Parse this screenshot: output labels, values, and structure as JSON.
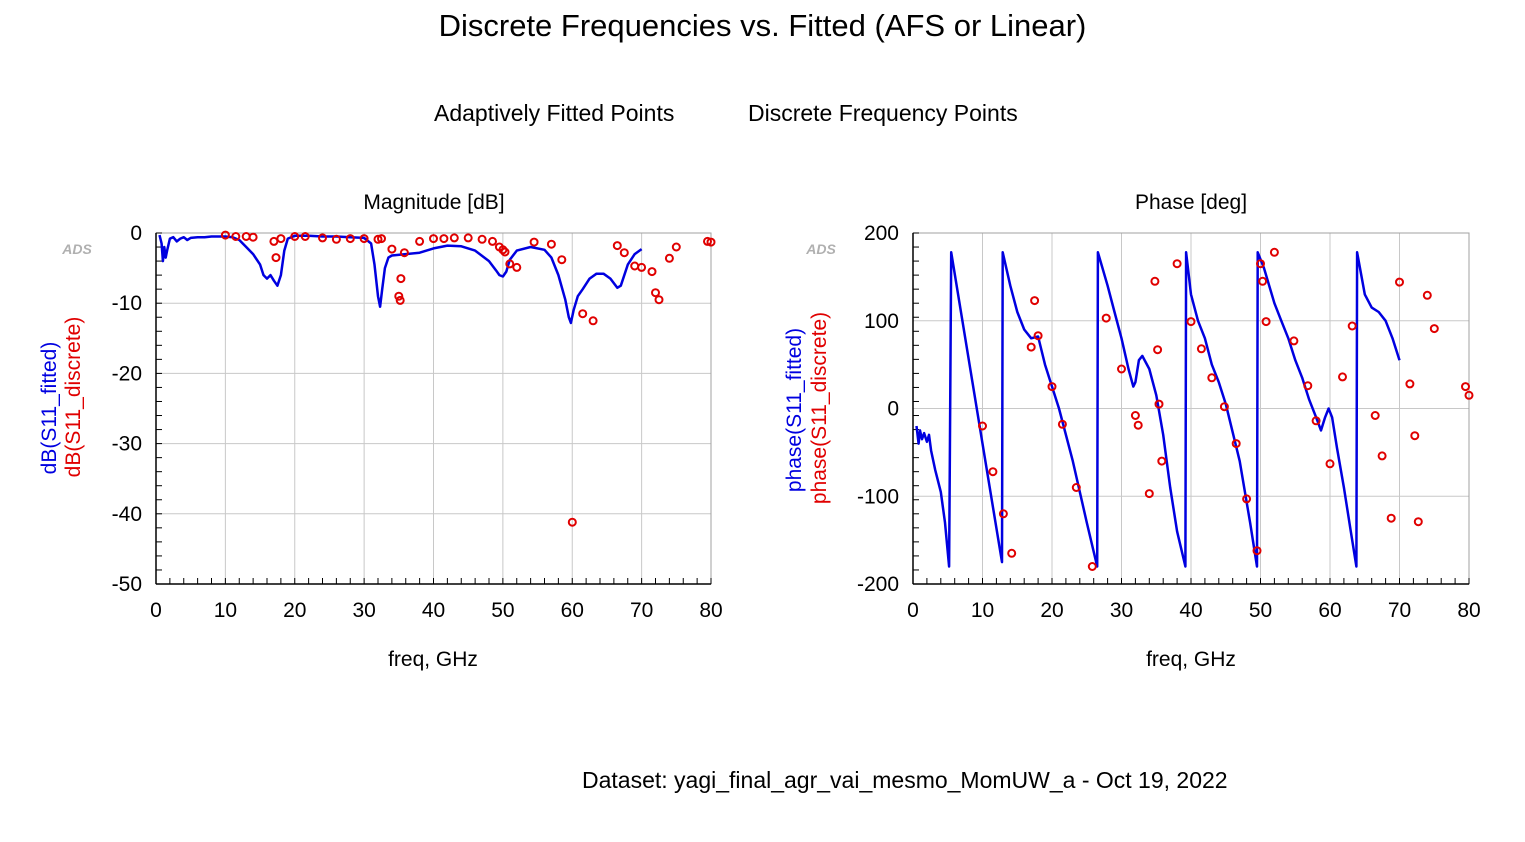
{
  "title": "Discrete Frequencies vs. Fitted (AFS or Linear)",
  "legend": {
    "fitted": "Adaptively Fitted Points",
    "discrete": "Discrete Frequency Points"
  },
  "dataset": "Dataset: yagi_final_agr_vai_mesmo_MomUW_a - Oct 19, 2022",
  "colors": {
    "fitted": "#0000e0",
    "discrete": "#e00000",
    "grid": "#c8c8c8"
  },
  "chart_data": [
    {
      "type": "line",
      "title": "Magnitude [dB]",
      "watermark": "ADS",
      "xlabel": "freq, GHz",
      "ylabel_fitted": "dB(S11_fitted)",
      "ylabel_discrete": "dB(S11_discrete)",
      "xlim": [
        0,
        80
      ],
      "ylim": [
        -50,
        0
      ],
      "xticks": [
        0,
        10,
        20,
        30,
        40,
        50,
        60,
        70,
        80
      ],
      "yticks": [
        0,
        -10,
        -20,
        -30,
        -40,
        -50
      ],
      "grid": true,
      "series": [
        {
          "name": "S11_fitted",
          "style": "line",
          "points": [
            [
              0.5,
              -0.3
            ],
            [
              0.8,
              -1.5
            ],
            [
              1.0,
              -4.0
            ],
            [
              1.2,
              -2.0
            ],
            [
              1.4,
              -3.5
            ],
            [
              1.6,
              -2.5
            ],
            [
              2.0,
              -0.8
            ],
            [
              2.5,
              -0.6
            ],
            [
              3.0,
              -1.2
            ],
            [
              3.5,
              -0.8
            ],
            [
              4.0,
              -0.6
            ],
            [
              4.5,
              -1.0
            ],
            [
              5.0,
              -0.7
            ],
            [
              6,
              -0.6
            ],
            [
              7,
              -0.6
            ],
            [
              8,
              -0.5
            ],
            [
              9,
              -0.5
            ],
            [
              10,
              -0.5
            ],
            [
              11,
              -0.6
            ],
            [
              12,
              -1.0
            ],
            [
              13,
              -2.0
            ],
            [
              14,
              -3.0
            ],
            [
              15,
              -4.5
            ],
            [
              15.5,
              -6.0
            ],
            [
              16,
              -6.5
            ],
            [
              16.5,
              -6.0
            ],
            [
              17,
              -6.8
            ],
            [
              17.5,
              -7.5
            ],
            [
              18,
              -6.0
            ],
            [
              18.5,
              -2.5
            ],
            [
              19,
              -0.8
            ],
            [
              20,
              -0.4
            ],
            [
              22,
              -0.4
            ],
            [
              24,
              -0.5
            ],
            [
              26,
              -0.5
            ],
            [
              28,
              -0.6
            ],
            [
              30,
              -0.7
            ],
            [
              31,
              -1.5
            ],
            [
              31.5,
              -4.5
            ],
            [
              32,
              -9.0
            ],
            [
              32.3,
              -10.5
            ],
            [
              32.6,
              -8.0
            ],
            [
              33,
              -5.0
            ],
            [
              33.5,
              -3.5
            ],
            [
              34,
              -3.2
            ],
            [
              36,
              -3.0
            ],
            [
              38,
              -2.8
            ],
            [
              40,
              -2.2
            ],
            [
              42,
              -1.8
            ],
            [
              44,
              -1.9
            ],
            [
              46,
              -2.5
            ],
            [
              48,
              -4.0
            ],
            [
              49,
              -5.3
            ],
            [
              49.5,
              -6.0
            ],
            [
              50,
              -6.2
            ],
            [
              50.5,
              -5.5
            ],
            [
              51,
              -3.8
            ],
            [
              52,
              -2.5
            ],
            [
              54,
              -2.0
            ],
            [
              56,
              -2.4
            ],
            [
              57,
              -3.5
            ],
            [
              58,
              -6.0
            ],
            [
              59,
              -9.5
            ],
            [
              59.5,
              -12.0
            ],
            [
              59.8,
              -12.8
            ],
            [
              60.2,
              -11.0
            ],
            [
              60.8,
              -9.0
            ],
            [
              61.5,
              -8.0
            ],
            [
              62.5,
              -6.5
            ],
            [
              63.5,
              -5.8
            ],
            [
              64.5,
              -5.8
            ],
            [
              65.5,
              -6.5
            ],
            [
              66.5,
              -7.8
            ],
            [
              67,
              -7.5
            ],
            [
              68,
              -4.5
            ],
            [
              69,
              -3.0
            ],
            [
              70,
              -2.3
            ]
          ]
        },
        {
          "name": "S11_discrete",
          "style": "markers",
          "points": [
            [
              10,
              -0.3
            ],
            [
              11.5,
              -0.5
            ],
            [
              13,
              -0.5
            ],
            [
              14,
              -0.6
            ],
            [
              17,
              -1.2
            ],
            [
              17.3,
              -3.5
            ],
            [
              18,
              -0.8
            ],
            [
              20,
              -0.5
            ],
            [
              21.5,
              -0.5
            ],
            [
              24,
              -0.7
            ],
            [
              26,
              -0.9
            ],
            [
              28,
              -0.8
            ],
            [
              30,
              -0.8
            ],
            [
              32,
              -0.9
            ],
            [
              32.5,
              -0.8
            ],
            [
              34,
              -2.3
            ],
            [
              35,
              -9.0
            ],
            [
              35.3,
              -6.5
            ],
            [
              35.2,
              -9.6
            ],
            [
              35.8,
              -2.8
            ],
            [
              38,
              -1.2
            ],
            [
              40,
              -0.8
            ],
            [
              41.5,
              -0.8
            ],
            [
              43,
              -0.7
            ],
            [
              45,
              -0.7
            ],
            [
              47,
              -0.9
            ],
            [
              48.5,
              -1.2
            ],
            [
              49.5,
              -2.0
            ],
            [
              50,
              -2.4
            ],
            [
              50.3,
              -2.7
            ],
            [
              51,
              -4.4
            ],
            [
              52,
              -4.9
            ],
            [
              54.5,
              -1.3
            ],
            [
              57,
              -1.6
            ],
            [
              58.5,
              -3.8
            ],
            [
              60,
              -41.2
            ],
            [
              61.5,
              -11.5
            ],
            [
              63,
              -12.5
            ],
            [
              66.5,
              -1.8
            ],
            [
              67.5,
              -2.8
            ],
            [
              69,
              -4.7
            ],
            [
              70,
              -4.9
            ],
            [
              71.5,
              -5.5
            ],
            [
              72,
              -8.5
            ],
            [
              72.5,
              -9.5
            ],
            [
              74,
              -3.6
            ],
            [
              75,
              -2.0
            ],
            [
              79.5,
              -1.2
            ],
            [
              80,
              -1.3
            ]
          ]
        }
      ]
    },
    {
      "type": "line",
      "title": "Phase [deg]",
      "watermark": "ADS",
      "xlabel": "freq, GHz",
      "ylabel_fitted": "phase(S11_fitted)",
      "ylabel_discrete": "phase(S11_discrete)",
      "xlim": [
        0,
        80
      ],
      "ylim": [
        -200,
        200
      ],
      "xticks": [
        0,
        10,
        20,
        30,
        40,
        50,
        60,
        70,
        80
      ],
      "yticks": [
        200,
        100,
        0,
        -100,
        -200
      ],
      "grid": true,
      "series": [
        {
          "name": "S11_fitted",
          "style": "line",
          "points": [
            [
              0.5,
              -20
            ],
            [
              0.8,
              -40
            ],
            [
              1.0,
              -25
            ],
            [
              1.3,
              -35
            ],
            [
              1.6,
              -28
            ],
            [
              2.0,
              -38
            ],
            [
              2.3,
              -30
            ],
            [
              2.6,
              -48
            ],
            [
              3.2,
              -70
            ],
            [
              4.0,
              -95
            ],
            [
              4.6,
              -130
            ],
            [
              5.2,
              -180
            ],
            [
              5.3,
              -65
            ],
            [
              5.5,
              178
            ],
            [
              10,
              -40
            ],
            [
              12.8,
              -175
            ],
            [
              12.9,
              178
            ],
            [
              14,
              140
            ],
            [
              15,
              110
            ],
            [
              16,
              90
            ],
            [
              17,
              80
            ],
            [
              18,
              82
            ],
            [
              19,
              50
            ],
            [
              21,
              0
            ],
            [
              23,
              -60
            ],
            [
              25,
              -130
            ],
            [
              26.5,
              -180
            ],
            [
              26.6,
              178
            ],
            [
              28,
              140
            ],
            [
              29,
              110
            ],
            [
              30,
              80
            ],
            [
              31,
              45
            ],
            [
              31.7,
              25
            ],
            [
              32,
              30
            ],
            [
              32.5,
              55
            ],
            [
              33,
              60
            ],
            [
              34,
              45
            ],
            [
              35,
              15
            ],
            [
              36,
              -30
            ],
            [
              37,
              -90
            ],
            [
              38,
              -140
            ],
            [
              39.2,
              -180
            ],
            [
              39.3,
              178
            ],
            [
              40,
              130
            ],
            [
              41,
              100
            ],
            [
              42,
              80
            ],
            [
              43,
              50
            ],
            [
              44,
              30
            ],
            [
              45,
              5
            ],
            [
              47,
              -60
            ],
            [
              48.5,
              -130
            ],
            [
              49.5,
              -180
            ],
            [
              49.6,
              178
            ],
            [
              50.5,
              160
            ],
            [
              52,
              120
            ],
            [
              53,
              100
            ],
            [
              54,
              80
            ],
            [
              55,
              55
            ],
            [
              56,
              35
            ],
            [
              57,
              10
            ],
            [
              58,
              -10
            ],
            [
              58.7,
              -25
            ],
            [
              59.3,
              -10
            ],
            [
              59.8,
              0
            ],
            [
              60.3,
              -10
            ],
            [
              61,
              -45
            ],
            [
              62,
              -90
            ],
            [
              63,
              -140
            ],
            [
              63.8,
              -180
            ],
            [
              63.9,
              178
            ],
            [
              65,
              130
            ],
            [
              66,
              115
            ],
            [
              67,
              110
            ],
            [
              68,
              100
            ],
            [
              69,
              80
            ],
            [
              70,
              55
            ]
          ]
        },
        {
          "name": "S11_discrete",
          "style": "markers",
          "points": [
            [
              10,
              -20
            ],
            [
              11.5,
              -72
            ],
            [
              13,
              -120
            ],
            [
              14.2,
              -165
            ],
            [
              17,
              70
            ],
            [
              17.5,
              123
            ],
            [
              18,
              83
            ],
            [
              20,
              25
            ],
            [
              21.5,
              -18
            ],
            [
              23.5,
              -90
            ],
            [
              25.8,
              -180
            ],
            [
              27.8,
              103
            ],
            [
              30,
              45
            ],
            [
              32,
              -8
            ],
            [
              32.4,
              -19
            ],
            [
              34,
              -97
            ],
            [
              34.8,
              145
            ],
            [
              35.2,
              67
            ],
            [
              35.4,
              5
            ],
            [
              35.8,
              -60
            ],
            [
              38,
              165
            ],
            [
              40,
              99
            ],
            [
              41.5,
              68
            ],
            [
              43,
              35
            ],
            [
              44.8,
              2
            ],
            [
              46.5,
              -40
            ],
            [
              48,
              -103
            ],
            [
              49.5,
              -162
            ],
            [
              50,
              165
            ],
            [
              50.3,
              145
            ],
            [
              50.8,
              99
            ],
            [
              52,
              178
            ],
            [
              54.8,
              77
            ],
            [
              56.8,
              26
            ],
            [
              58,
              -14
            ],
            [
              60,
              -63
            ],
            [
              61.8,
              36
            ],
            [
              63.2,
              94
            ],
            [
              66.5,
              -8
            ],
            [
              67.5,
              -54
            ],
            [
              68.8,
              -125
            ],
            [
              70,
              144
            ],
            [
              71.5,
              28
            ],
            [
              72.2,
              -31
            ],
            [
              72.7,
              -129
            ],
            [
              74,
              129
            ],
            [
              75,
              91
            ],
            [
              79.5,
              25
            ],
            [
              80,
              15
            ]
          ]
        }
      ]
    }
  ]
}
